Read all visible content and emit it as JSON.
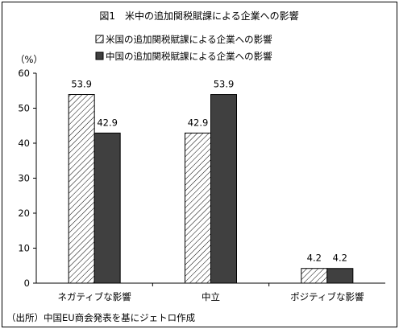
{
  "chart_data": {
    "type": "bar",
    "title": "図1　米中の追加関税賦課による企業への影響",
    "ylabel": "（%）",
    "xlabel": "",
    "ylim": [
      0,
      60
    ],
    "yticks": [
      0,
      10,
      20,
      30,
      40,
      50,
      60
    ],
    "categories": [
      "ネガティブな影響",
      "中立",
      "ポジティブな影響"
    ],
    "series": [
      {
        "name": "米国の追加関税賦課による企業への影響",
        "values": [
          53.9,
          42.9,
          4.2
        ],
        "pattern": "hatch",
        "color": "#ffffff"
      },
      {
        "name": "中国の追加関税賦課による企業への影響",
        "values": [
          42.9,
          53.9,
          4.2
        ],
        "pattern": "solid",
        "color": "#404040"
      }
    ],
    "data_labels": [
      [
        "53.9",
        "42.9",
        "4.2"
      ],
      [
        "42.9",
        "53.9",
        "4.2"
      ]
    ],
    "grid": false,
    "legend_position": "top"
  },
  "source_note": "（出所）中国EU商会発表を基にジェトロ作成"
}
